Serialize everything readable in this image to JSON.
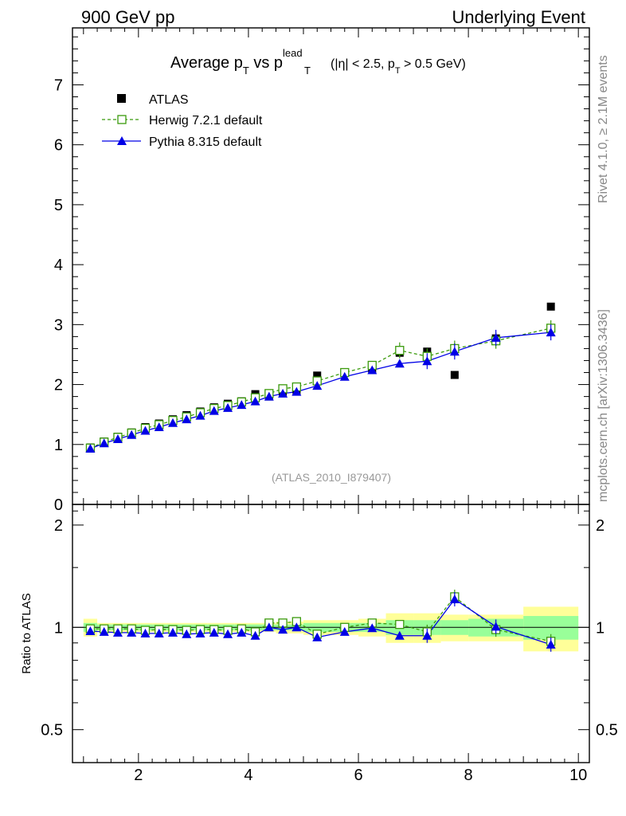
{
  "header": {
    "left": "900 GeV pp",
    "right": "Underlying Event"
  },
  "side_labels": {
    "upper": "Rivet 4.1.0, ≥ 2.1M events",
    "lower": "mcplots.cern.ch [arXiv:1306.3436]"
  },
  "chart_data": [
    {
      "type": "scatter",
      "panel": "main",
      "title": {
        "main": "Average p",
        "sub1": "T",
        "mid": " vs p",
        "sup": "lead",
        "sub2": "T",
        "cut_a": " (|η| < 2.5, p",
        "cut_sub": "T",
        "cut_b": " > 0.5 GeV)"
      },
      "analysis_id": "(ATLAS_2010_I879407)",
      "xlim": [
        0.8,
        10.2
      ],
      "ylim": [
        0,
        7.95
      ],
      "yticks": [
        "0",
        "1",
        "2",
        "3",
        "4",
        "5",
        "6",
        "7"
      ],
      "xticks": [
        "2",
        "4",
        "6",
        "8",
        "10"
      ],
      "series": [
        {
          "name": "ATLAS",
          "marker": "filled-square",
          "color": "#000000",
          "x": [
            1.125,
            1.375,
            1.625,
            1.875,
            2.125,
            2.375,
            2.625,
            2.875,
            3.125,
            3.375,
            3.625,
            3.875,
            4.125,
            4.375,
            4.625,
            4.875,
            5.25,
            5.75,
            6.25,
            6.75,
            7.25,
            7.75,
            8.5,
            9.5
          ],
          "values": [
            0.95,
            1.05,
            1.13,
            1.2,
            1.29,
            1.35,
            1.42,
            1.49,
            1.55,
            1.62,
            1.68,
            1.72,
            1.84,
            1.8,
            1.88,
            1.89,
            2.15,
            2.2,
            2.26,
            2.53,
            2.55,
            2.16,
            2.77,
            3.3
          ]
        },
        {
          "name": "Herwig 7.2.1 default",
          "marker": "open-square",
          "line": "dashed",
          "color": "#3a9a0c",
          "x": [
            1.125,
            1.375,
            1.625,
            1.875,
            2.125,
            2.375,
            2.625,
            2.875,
            3.125,
            3.375,
            3.625,
            3.875,
            4.125,
            4.375,
            4.625,
            4.875,
            5.25,
            5.75,
            6.25,
            6.75,
            7.25,
            7.75,
            8.5,
            9.5
          ],
          "values": [
            0.94,
            1.04,
            1.12,
            1.19,
            1.27,
            1.33,
            1.4,
            1.46,
            1.53,
            1.6,
            1.65,
            1.71,
            1.78,
            1.85,
            1.93,
            1.96,
            2.06,
            2.2,
            2.32,
            2.57,
            2.47,
            2.6,
            2.73,
            2.94
          ]
        },
        {
          "name": "Pythia 8.315 default",
          "marker": "filled-triangle",
          "line": "solid",
          "color": "#0000e6",
          "x": [
            1.125,
            1.375,
            1.625,
            1.875,
            2.125,
            2.375,
            2.625,
            2.875,
            3.125,
            3.375,
            3.625,
            3.875,
            4.125,
            4.375,
            4.625,
            4.875,
            5.25,
            5.75,
            6.25,
            6.75,
            7.25,
            7.75,
            8.5,
            9.5
          ],
          "values": [
            0.93,
            1.02,
            1.09,
            1.16,
            1.23,
            1.29,
            1.36,
            1.42,
            1.48,
            1.56,
            1.61,
            1.66,
            1.72,
            1.8,
            1.85,
            1.88,
            1.98,
            2.13,
            2.24,
            2.35,
            2.39,
            2.55,
            2.78,
            2.87
          ]
        }
      ]
    },
    {
      "type": "line",
      "panel": "ratio",
      "ylabel": "Ratio to ATLAS",
      "xlim": [
        0.8,
        10.2
      ],
      "ylim": [
        0.4,
        2.3
      ],
      "yscale": "log",
      "yticks": [
        "0.5",
        "1",
        "2"
      ],
      "xticks": [
        "2",
        "4",
        "6",
        "8",
        "10"
      ],
      "bands": {
        "x_edges": [
          1.0,
          1.25,
          1.5,
          1.75,
          2.0,
          2.25,
          2.5,
          2.75,
          3.0,
          3.25,
          3.5,
          3.75,
          4.0,
          4.25,
          4.5,
          4.75,
          5.0,
          5.5,
          6.0,
          6.5,
          7.0,
          7.5,
          8.0,
          9.0,
          10.0
        ],
        "green_half": [
          0.03,
          0.02,
          0.02,
          0.02,
          0.02,
          0.02,
          0.02,
          0.02,
          0.02,
          0.02,
          0.02,
          0.02,
          0.02,
          0.02,
          0.02,
          0.02,
          0.03,
          0.03,
          0.03,
          0.05,
          0.05,
          0.05,
          0.06,
          0.08
        ],
        "yellow_half": [
          0.06,
          0.03,
          0.03,
          0.03,
          0.03,
          0.03,
          0.03,
          0.03,
          0.03,
          0.03,
          0.03,
          0.03,
          0.03,
          0.03,
          0.04,
          0.04,
          0.05,
          0.05,
          0.06,
          0.1,
          0.1,
          0.09,
          0.09,
          0.15
        ]
      },
      "series": [
        {
          "name": "Herwig 7.2.1 default",
          "color": "#3a9a0c",
          "x": [
            1.125,
            1.375,
            1.625,
            1.875,
            2.125,
            2.375,
            2.625,
            2.875,
            3.125,
            3.375,
            3.625,
            3.875,
            4.125,
            4.375,
            4.625,
            4.875,
            5.25,
            5.75,
            6.25,
            6.75,
            7.25,
            7.75,
            8.5,
            9.5
          ],
          "values": [
            0.99,
            0.99,
            0.99,
            0.99,
            0.98,
            0.985,
            0.985,
            0.98,
            0.985,
            0.985,
            0.98,
            0.99,
            0.97,
            1.03,
            1.03,
            1.04,
            0.955,
            1.0,
            1.03,
            1.02,
            0.97,
            1.23,
            0.985,
            0.91
          ]
        },
        {
          "name": "Pythia 8.315 default",
          "color": "#0000e6",
          "x": [
            1.125,
            1.375,
            1.625,
            1.875,
            2.125,
            2.375,
            2.625,
            2.875,
            3.125,
            3.375,
            3.625,
            3.875,
            4.125,
            4.375,
            4.625,
            4.875,
            5.25,
            5.75,
            6.25,
            6.75,
            7.25,
            7.75,
            8.5,
            9.5
          ],
          "values": [
            0.975,
            0.97,
            0.965,
            0.965,
            0.96,
            0.96,
            0.965,
            0.955,
            0.96,
            0.965,
            0.955,
            0.965,
            0.945,
            1.0,
            0.985,
            1.0,
            0.935,
            0.97,
            0.995,
            0.945,
            0.945,
            1.21,
            1.005,
            0.89
          ]
        }
      ]
    }
  ]
}
